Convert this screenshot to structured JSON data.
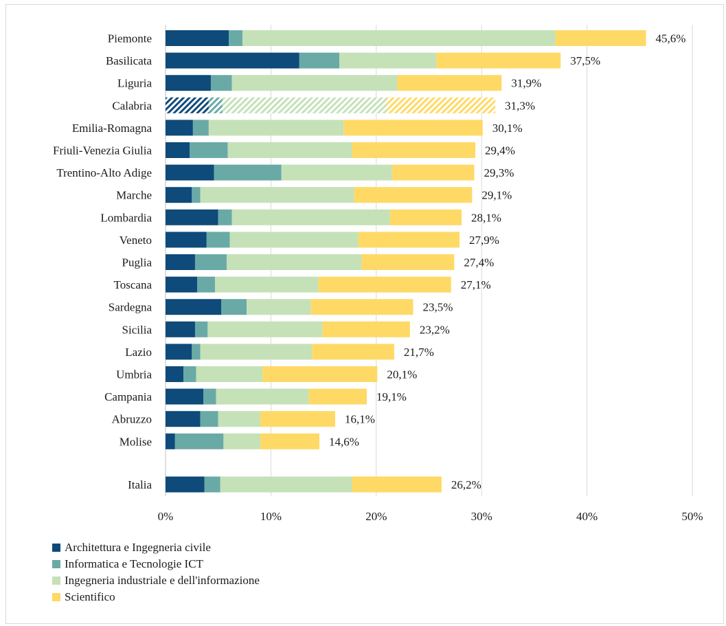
{
  "chart_data": {
    "type": "bar",
    "orientation": "horizontal",
    "stacked": true,
    "title": "",
    "xlabel": "",
    "ylabel": "",
    "xlim": [
      0,
      50
    ],
    "xticks": [
      "0%",
      "10%",
      "20%",
      "30%",
      "40%",
      "50%"
    ],
    "grid": "vertical",
    "legend": "bottom-left",
    "categories": [
      "Piemonte",
      "Basilicata",
      "Liguria",
      "Calabria",
      "Emilia-Romagna",
      "Friuli-Venezia Giulia",
      "Trentino-Alto Adige",
      "Marche",
      "Lombardia",
      "Veneto",
      "Puglia",
      "Toscana",
      "Sardegna",
      "Sicilia",
      "Lazio",
      "Umbria",
      "Campania",
      "Abruzzo",
      "Molise",
      "Italia"
    ],
    "totals_labels": [
      "45,6%",
      "37,5%",
      "31,9%",
      "31,3%",
      "30,1%",
      "29,4%",
      "29,3%",
      "29,1%",
      "28,1%",
      "27,9%",
      "27,4%",
      "27,1%",
      "23,5%",
      "23,2%",
      "21,7%",
      "20,1%",
      "19,1%",
      "16,1%",
      "14,6%",
      "26,2%"
    ],
    "hatched_categories": [
      "Calabria"
    ],
    "series": [
      {
        "name": "Architettura e Ingegneria civile",
        "color": "#0e4a7a",
        "values": [
          6.0,
          12.7,
          4.3,
          4.1,
          2.6,
          2.3,
          4.6,
          2.5,
          5.0,
          3.9,
          2.8,
          3.0,
          5.3,
          2.8,
          2.5,
          1.7,
          3.6,
          3.3,
          0.9,
          3.7
        ]
      },
      {
        "name": "Informatica e Tecnologie ICT",
        "color": "#6aaaa6",
        "values": [
          1.3,
          3.8,
          2.0,
          1.3,
          1.5,
          3.6,
          6.4,
          0.8,
          1.3,
          2.2,
          3.0,
          1.7,
          2.4,
          1.2,
          0.8,
          1.2,
          1.2,
          1.7,
          4.6,
          1.5
        ]
      },
      {
        "name": "Ingegneria industriale e dell'informazione",
        "color": "#c5e1b8",
        "values": [
          29.7,
          9.2,
          15.7,
          15.6,
          12.8,
          11.8,
          10.5,
          14.6,
          15.0,
          12.2,
          12.8,
          9.8,
          6.1,
          10.9,
          10.6,
          6.3,
          8.8,
          4.0,
          3.5,
          12.5
        ]
      },
      {
        "name": "Scientifico",
        "color": "#ffd966",
        "values": [
          8.6,
          11.8,
          9.9,
          10.3,
          13.2,
          11.7,
          7.8,
          11.2,
          6.8,
          9.6,
          8.8,
          12.6,
          9.7,
          8.3,
          7.8,
          10.9,
          5.5,
          7.1,
          5.6,
          8.5
        ]
      }
    ]
  }
}
